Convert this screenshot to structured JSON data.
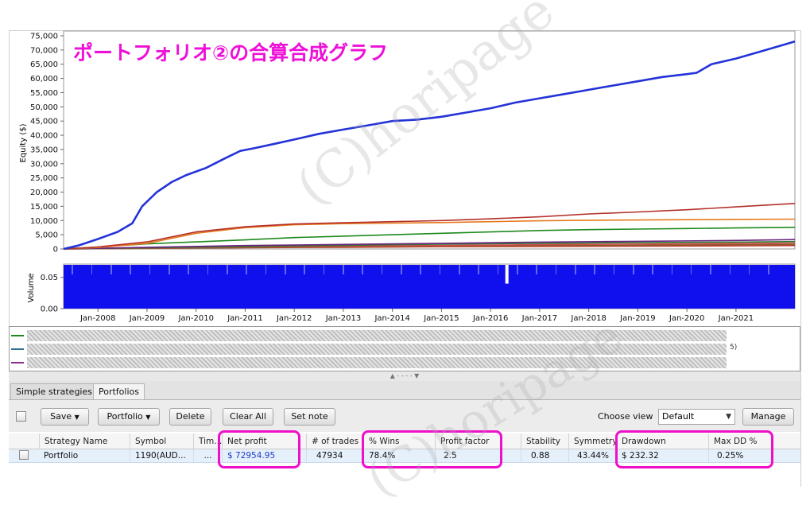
{
  "overlay": {
    "title": "ポートフォリオ②の合算合成グラフ",
    "watermark": "(C)horipage",
    "highlight_color": "#ee10c9"
  },
  "chart_data": [
    {
      "type": "line",
      "ylabel": "Equity ($)",
      "ylim": [
        0,
        75000
      ],
      "yticks": [
        "75,000",
        "70,000",
        "65,000",
        "60,000",
        "55,000",
        "50,000",
        "45,000",
        "40,000",
        "35,000",
        "30,000",
        "25,000",
        "20,000",
        "15,000",
        "10,000",
        "5,000",
        "0"
      ],
      "x_tick_labels": [
        "Jan-2008",
        "Jan-2009",
        "Jan-2010",
        "Jan-2011",
        "Jan-2012",
        "Jan-2013",
        "Jan-2014",
        "Jan-2015",
        "Jan-2016",
        "Jan-2017",
        "Jan-2018",
        "Jan-2019",
        "Jan-2020",
        "Jan-2021"
      ],
      "xlim": [
        2007.3,
        2022.2
      ],
      "series": [
        {
          "color": "#2433d8",
          "x": [
            2007.3,
            2007.6,
            2008.0,
            2008.4,
            2008.7,
            2008.9,
            2009.2,
            2009.5,
            2009.8,
            2010.2,
            2010.6,
            2010.9,
            2011.2,
            2011.6,
            2012.0,
            2012.5,
            2013.0,
            2013.5,
            2014.0,
            2014.5,
            2015.0,
            2015.5,
            2016.0,
            2016.5,
            2017.0,
            2017.5,
            2018.0,
            2018.5,
            2019.0,
            2019.5,
            2020.0,
            2020.2,
            2020.5,
            2021.0,
            2021.5,
            2022.0,
            2022.2
          ],
          "y": [
            0,
            1200,
            3500,
            6000,
            9000,
            15000,
            20000,
            23500,
            26000,
            28500,
            32000,
            34500,
            35500,
            37000,
            38500,
            40500,
            42000,
            43500,
            45000,
            45500,
            46500,
            48000,
            49500,
            51500,
            53000,
            54500,
            56000,
            57500,
            59000,
            60500,
            61500,
            62000,
            65000,
            67000,
            69500,
            72000,
            73000
          ]
        },
        {
          "color": "#b3302a",
          "x": [
            2007.3,
            2008.0,
            2009.0,
            2010.0,
            2011.0,
            2012.0,
            2013.0,
            2014.0,
            2015.0,
            2016.0,
            2017.0,
            2018.0,
            2019.0,
            2020.0,
            2021.0,
            2022.2
          ],
          "y": [
            0,
            700,
            2500,
            6000,
            7800,
            8800,
            9200,
            9600,
            10000,
            10600,
            11300,
            12300,
            13000,
            13800,
            14800,
            16000
          ]
        },
        {
          "color": "#e67a1c",
          "x": [
            2007.3,
            2008.0,
            2009.0,
            2010.0,
            2011.0,
            2012.0,
            2013.0,
            2014.0,
            2015.0,
            2016.0,
            2017.0,
            2018.0,
            2019.0,
            2020.0,
            2021.0,
            2022.2
          ],
          "y": [
            0,
            500,
            2000,
            5500,
            7500,
            8500,
            8900,
            9100,
            9300,
            9600,
            9900,
            10100,
            10200,
            10300,
            10400,
            10500
          ]
        },
        {
          "color": "#1e8a1e",
          "x": [
            2007.3,
            2008.0,
            2009.0,
            2010.0,
            2011.0,
            2012.0,
            2013.0,
            2014.0,
            2015.0,
            2016.0,
            2017.0,
            2018.0,
            2019.0,
            2020.0,
            2021.0,
            2022.2
          ],
          "y": [
            0,
            700,
            1800,
            2500,
            3200,
            4000,
            4500,
            5000,
            5500,
            6000,
            6500,
            6800,
            7000,
            7200,
            7400,
            7600
          ]
        },
        {
          "color": "#6b2480",
          "x": [
            2007.3,
            2009.0,
            2011.0,
            2013.0,
            2015.0,
            2017.0,
            2019.0,
            2021.0,
            2022.2
          ],
          "y": [
            0,
            600,
            1200,
            1600,
            2000,
            2400,
            2700,
            3000,
            3300
          ]
        },
        {
          "color": "#2f7a2f",
          "x": [
            2007.3,
            2009.0,
            2011.0,
            2013.0,
            2015.0,
            2017.0,
            2019.0,
            2021.0,
            2022.2
          ],
          "y": [
            0,
            400,
            900,
            1300,
            1700,
            2000,
            2200,
            2400,
            2600
          ]
        },
        {
          "color": "#d14a4a",
          "x": [
            2007.3,
            2009.0,
            2011.0,
            2013.0,
            2015.0,
            2017.0,
            2019.0,
            2021.0,
            2022.2
          ],
          "y": [
            0,
            300,
            700,
            1000,
            1200,
            1500,
            1700,
            1900,
            2100
          ]
        },
        {
          "color": "#8a5a2a",
          "x": [
            2007.3,
            2009.0,
            2011.0,
            2013.0,
            2015.0,
            2017.0,
            2019.0,
            2021.0,
            2022.2
          ],
          "y": [
            0,
            200,
            500,
            800,
            1000,
            1200,
            1300,
            1500,
            1600
          ]
        },
        {
          "color": "#c0392b",
          "x": [
            2007.3,
            2009.0,
            2011.0,
            2013.0,
            2015.0,
            2017.0,
            2019.0,
            2021.0,
            2022.2
          ],
          "y": [
            0,
            250,
            450,
            600,
            800,
            900,
            1000,
            1100,
            1200
          ]
        }
      ]
    },
    {
      "type": "bar",
      "ylabel": "Volume",
      "ylim": [
        0,
        0.07
      ],
      "yticks": [
        "0.05",
        "0.00"
      ],
      "value": 0.07,
      "dip_x": 2016.3,
      "dip_value": 0.04,
      "color": "#1010ee"
    }
  ],
  "legend": {
    "rows": [
      {
        "color": "#1e8a1e",
        "tail": ""
      },
      {
        "color": "#2f6f8f",
        "tail": "5)"
      },
      {
        "color": "#8a2a8a",
        "tail": ""
      }
    ],
    "splitter": "▲ - - - - ▼"
  },
  "tabs": [
    {
      "label": "Simple strategies"
    },
    {
      "label": "Portfolios"
    }
  ],
  "toolbar": {
    "save": "Save",
    "portfolio": "Portfolio",
    "delete": "Delete",
    "clear_all": "Clear All",
    "set_note": "Set note",
    "choose_view_label": "Choose view",
    "choose_view_value": "Default",
    "manage": "Manage",
    "dropdown_arrow": "▼"
  },
  "table": {
    "headers": [
      "Strategy Name",
      "Symbol",
      "Tim...",
      "Net profit",
      "# of trades",
      "% Wins",
      "Profit factor",
      "Stability",
      "Symmetry",
      "Drawdown",
      "Max DD %"
    ],
    "row": [
      "Portfolio",
      "1190(AUD...",
      "...",
      "$ 72954.95",
      "47934",
      "78.4%",
      "2.5",
      "0.88",
      "43.44%",
      "$ 232.32",
      "0.25%"
    ]
  }
}
